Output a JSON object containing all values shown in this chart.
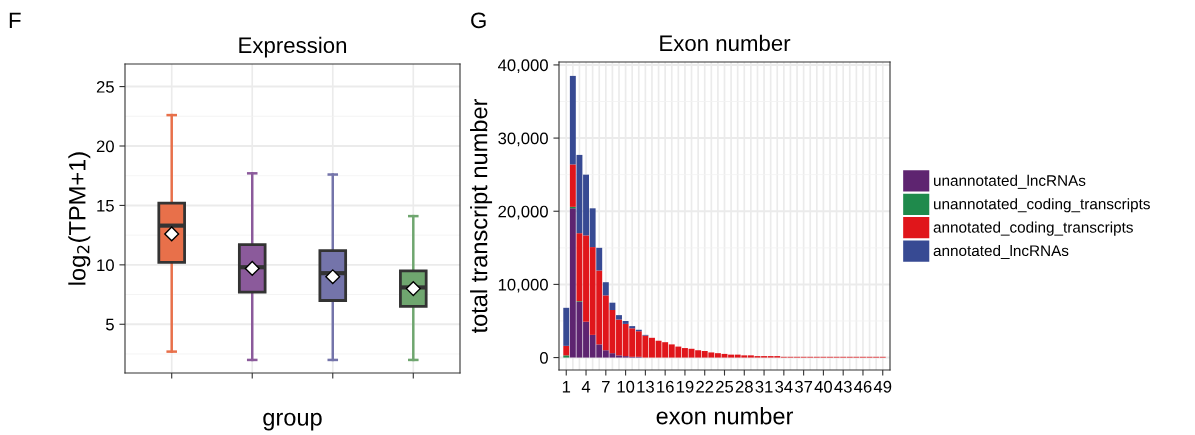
{
  "chart_data": [
    {
      "type": "box",
      "title": "Expression",
      "xlabel": "group",
      "ylabel": "log$_{2}$(TPM+1)",
      "annotations": [
        "F"
      ],
      "categories": [
        null,
        null,
        null,
        null
      ],
      "colors": [
        "#e8704a",
        "#8b5a9b",
        "#7474aa",
        "#6fa66f"
      ],
      "boxes": [
        {
          "low": 2.7,
          "q1": 10.2,
          "median": 13.3,
          "q3": 15.2,
          "high": 22.6,
          "mean": 12.6
        },
        {
          "low": 2.0,
          "q1": 7.7,
          "median": 9.8,
          "q3": 11.7,
          "high": 17.7,
          "mean": 9.7
        },
        {
          "low": 2.0,
          "q1": 7.0,
          "median": 9.3,
          "q3": 11.2,
          "high": 17.6,
          "mean": 9.0
        },
        {
          "low": 2.0,
          "q1": 6.5,
          "median": 8.1,
          "q3": 9.5,
          "high": 14.1,
          "mean": 8.0
        }
      ],
      "ylim": [
        0.9,
        26.9
      ],
      "yticks": [
        5,
        10,
        15,
        20,
        25
      ],
      "grid": true
    },
    {
      "type": "bar",
      "stacked": true,
      "title": "Exon number",
      "xlabel": "exon number",
      "ylabel": "total transcript number",
      "annotations": [
        "G"
      ],
      "categories": [
        "1",
        null,
        null,
        "4",
        null,
        null,
        "7",
        null,
        null,
        "10",
        null,
        null,
        "13",
        null,
        null,
        "16",
        null,
        null,
        "19",
        null,
        null,
        "22",
        null,
        null,
        "25",
        null,
        null,
        "28",
        null,
        null,
        "31",
        null,
        null,
        "34",
        null,
        null,
        "37",
        null,
        null,
        "40",
        null,
        null,
        "43",
        null,
        null,
        "46",
        null,
        null,
        "49"
      ],
      "series": [
        {
          "name": "unannotated_lncRNAs",
          "color": "#5e2470",
          "values": [
            0,
            20400,
            7600,
            4900,
            3100,
            1800,
            1000,
            600,
            300,
            200,
            100,
            100,
            0,
            0,
            0,
            0,
            0,
            0,
            0,
            0,
            0,
            0,
            0,
            0,
            0,
            0,
            0,
            0,
            0,
            0,
            0,
            0,
            0,
            0,
            0,
            0,
            0,
            0,
            0,
            0,
            0,
            0,
            0,
            0,
            0,
            0,
            0,
            0,
            0
          ]
        },
        {
          "name": "unannotated_coding_transcripts",
          "color": "#1f8a4c",
          "values": [
            300,
            200,
            100,
            0,
            0,
            0,
            0,
            0,
            0,
            0,
            0,
            0,
            0,
            0,
            0,
            0,
            0,
            0,
            0,
            0,
            0,
            0,
            0,
            0,
            0,
            0,
            0,
            0,
            0,
            0,
            0,
            0,
            0,
            0,
            0,
            0,
            0,
            0,
            0,
            0,
            0,
            0,
            0,
            0,
            0,
            0,
            0,
            0,
            0
          ]
        },
        {
          "name": "annotated_coding_transcripts",
          "color": "#e0161b",
          "values": [
            1300,
            5800,
            9300,
            11800,
            12000,
            10100,
            7500,
            5900,
            4900,
            4400,
            3900,
            3500,
            3000,
            2700,
            2300,
            2100,
            1800,
            1500,
            1300,
            1200,
            1000,
            900,
            700,
            600,
            500,
            400,
            400,
            300,
            300,
            200,
            200,
            200,
            200,
            100,
            100,
            100,
            100,
            100,
            100,
            100,
            100,
            100,
            100,
            100,
            100,
            100,
            100,
            100,
            100
          ]
        },
        {
          "name": "annotated_lncRNAs",
          "color": "#374a93",
          "values": [
            5200,
            12100,
            10700,
            8300,
            5300,
            3100,
            1800,
            1000,
            600,
            400,
            300,
            200,
            100,
            0,
            0,
            0,
            0,
            0,
            0,
            0,
            0,
            0,
            0,
            0,
            0,
            0,
            0,
            0,
            0,
            0,
            0,
            0,
            0,
            0,
            0,
            0,
            0,
            0,
            0,
            0,
            0,
            0,
            0,
            0,
            0,
            0,
            0,
            0,
            0
          ]
        }
      ],
      "ylim": [
        -1700,
        40400
      ],
      "yticks": [
        0,
        {
          "value": 10000,
          "label": "10,000"
        },
        {
          "value": 20000,
          "label": "20,000"
        },
        {
          "value": 30000,
          "label": "30,000"
        },
        {
          "value": 40000,
          "label": "40,000"
        }
      ],
      "grid": true,
      "legend": "right"
    }
  ]
}
